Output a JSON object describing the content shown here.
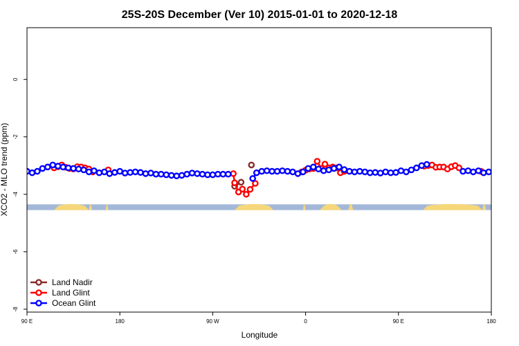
{
  "chart_data": {
    "type": "line",
    "title": "25S-20S December (Ver 10)   2015-01-01 to 2020-12-18",
    "xlabel": "Longitude",
    "ylabel": "XCO2 - MLO trend (ppm)",
    "xlim": [
      90,
      450
    ],
    "ylim": [
      -8.1,
      1.8
    ],
    "x_ticks": [
      {
        "value": 90,
        "label": "90 E"
      },
      {
        "value": 162,
        "label": "180"
      },
      {
        "value": 234,
        "label": "90 W"
      },
      {
        "value": 306,
        "label": "0"
      },
      {
        "value": 378,
        "label": "90 E"
      },
      {
        "value": 450,
        "label": "180"
      }
    ],
    "y_ticks": [
      {
        "value": 0,
        "label": "0"
      },
      {
        "value": -2,
        "label": "-2"
      },
      {
        "value": -4,
        "label": "-4"
      },
      {
        "value": -6,
        "label": "-6"
      },
      {
        "value": -8,
        "label": "-8"
      }
    ],
    "grid": false,
    "legend_position": "bottom-left",
    "land_band": {
      "y_range": [
        -4.35,
        -4.55
      ],
      "ocean_color": "#a3b8d8",
      "land_color": "#f6d77a",
      "land_segments": [
        [
          111,
          138
        ],
        [
          138,
          140.5
        ],
        [
          151,
          153
        ],
        [
          251,
          281
        ],
        [
          304,
          306
        ],
        [
          317,
          334
        ],
        [
          339,
          343
        ],
        [
          397,
          443
        ],
        [
          443,
          446
        ]
      ]
    },
    "series": [
      {
        "name": "Land Nadir",
        "color": "#8b2a2a",
        "x": [
          251,
          256,
          264
        ],
        "y": [
          -3.72,
          -3.58,
          -2.98
        ]
      },
      {
        "name": "Land Glint",
        "color": "#ff0000",
        "x": [
          111,
          114,
          117,
          120,
          123,
          126,
          129,
          132,
          135,
          138,
          141,
          153,
          250,
          251,
          254,
          257,
          260,
          263,
          267,
          303,
          306,
          309,
          312,
          315,
          318,
          321,
          324,
          327,
          330,
          333,
          336,
          398,
          401,
          404,
          407,
          410,
          413,
          416,
          419,
          422,
          425,
          442
        ],
        "y": [
          -3.08,
          -3.04,
          -2.98,
          -3.06,
          -3.1,
          -3.12,
          -3.04,
          -3.05,
          -3.08,
          -3.12,
          -3.22,
          -3.15,
          -3.28,
          -3.6,
          -3.92,
          -3.82,
          -4.0,
          -3.83,
          -3.62,
          -3.22,
          -3.16,
          -3.12,
          -3.1,
          -2.85,
          -3.1,
          -2.95,
          -3.08,
          -3.05,
          -3.08,
          -3.25,
          -3.2,
          -3.02,
          -3.0,
          -2.98,
          -3.06,
          -3.05,
          -3.05,
          -3.12,
          -3.04,
          -3.0,
          -3.08,
          -3.2
        ]
      },
      {
        "name": "Ocean Glint",
        "color": "#0000ff",
        "x": [
          90,
          94,
          98,
          102,
          106,
          110,
          114,
          118,
          122,
          126,
          130,
          134,
          138,
          142,
          146,
          150,
          154,
          158,
          162,
          166,
          170,
          174,
          178,
          182,
          186,
          190,
          194,
          198,
          202,
          206,
          210,
          214,
          218,
          222,
          226,
          230,
          234,
          238,
          242,
          246,
          265,
          268,
          272,
          276,
          280,
          284,
          288,
          292,
          296,
          300,
          304,
          308,
          312,
          316,
          320,
          324,
          328,
          332,
          336,
          340,
          344,
          348,
          352,
          356,
          360,
          364,
          368,
          372,
          376,
          380,
          384,
          388,
          392,
          396,
          400,
          428,
          432,
          436,
          440,
          444,
          448
        ],
        "y": [
          -3.2,
          -3.25,
          -3.2,
          -3.1,
          -3.05,
          -2.98,
          -3.02,
          -3.05,
          -3.08,
          -3.1,
          -3.12,
          -3.15,
          -3.22,
          -3.18,
          -3.25,
          -3.22,
          -3.28,
          -3.24,
          -3.2,
          -3.26,
          -3.24,
          -3.22,
          -3.24,
          -3.28,
          -3.26,
          -3.3,
          -3.3,
          -3.32,
          -3.34,
          -3.36,
          -3.34,
          -3.3,
          -3.26,
          -3.28,
          -3.3,
          -3.32,
          -3.32,
          -3.3,
          -3.3,
          -3.3,
          -3.45,
          -3.25,
          -3.2,
          -3.18,
          -3.2,
          -3.2,
          -3.18,
          -3.2,
          -3.22,
          -3.28,
          -3.22,
          -3.1,
          -3.05,
          -3.12,
          -3.18,
          -3.15,
          -3.1,
          -3.05,
          -3.14,
          -3.2,
          -3.22,
          -3.2,
          -3.22,
          -3.25,
          -3.24,
          -3.26,
          -3.22,
          -3.25,
          -3.24,
          -3.18,
          -3.22,
          -3.15,
          -3.08,
          -3.0,
          -2.96,
          -3.2,
          -3.18,
          -3.22,
          -3.18,
          -3.25,
          -3.22
        ]
      }
    ]
  }
}
